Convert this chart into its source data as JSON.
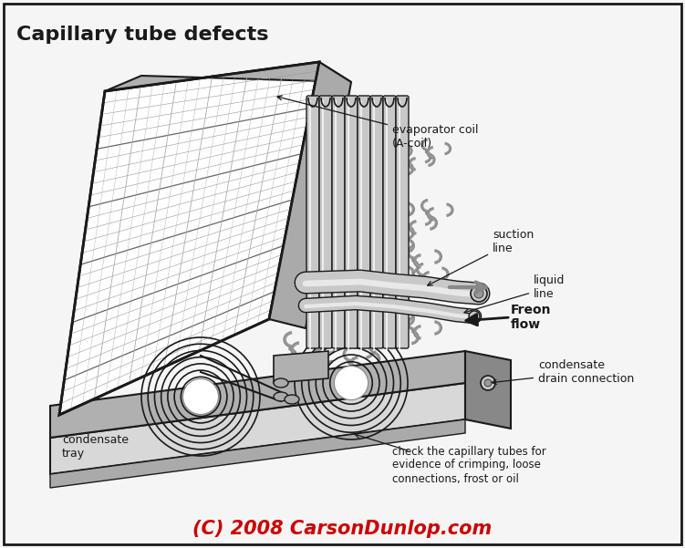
{
  "title": "Capillary tube defects",
  "copyright": "(C) 2008 CarsonDunlop.com",
  "copyright_color": "#cc0000",
  "background_color": "#f5f5f5",
  "border_color": "#333333",
  "figsize": [
    7.51,
    6.01
  ],
  "dpi": 100,
  "labels": {
    "evaporator_coil": "evaporator coil\n(A-coil)",
    "suction_line": "suction\nline",
    "liquid_line": "liquid\nline",
    "freon_flow": "Freon\nflow",
    "condensate_tray": "condensate\ntray",
    "condensate_drain": "condensate\ndrain connection",
    "capillary_check": "check the capillary tubes for\nevidence of crimping, loose\nconnections, frost or oil"
  },
  "colors": {
    "dark": "#1a1a1a",
    "mid_gray": "#888888",
    "light_gray": "#cccccc",
    "white": "#ffffff",
    "panel_gray": "#aaaaaa",
    "coil_gray": "#999999",
    "tray_top": "#b0b0b0",
    "tray_front": "#d8d8d8",
    "tray_side": "#888888",
    "fin_gray": "#bbbbbb",
    "tube_light": "#c8c8c8",
    "tube_dark": "#606060"
  }
}
